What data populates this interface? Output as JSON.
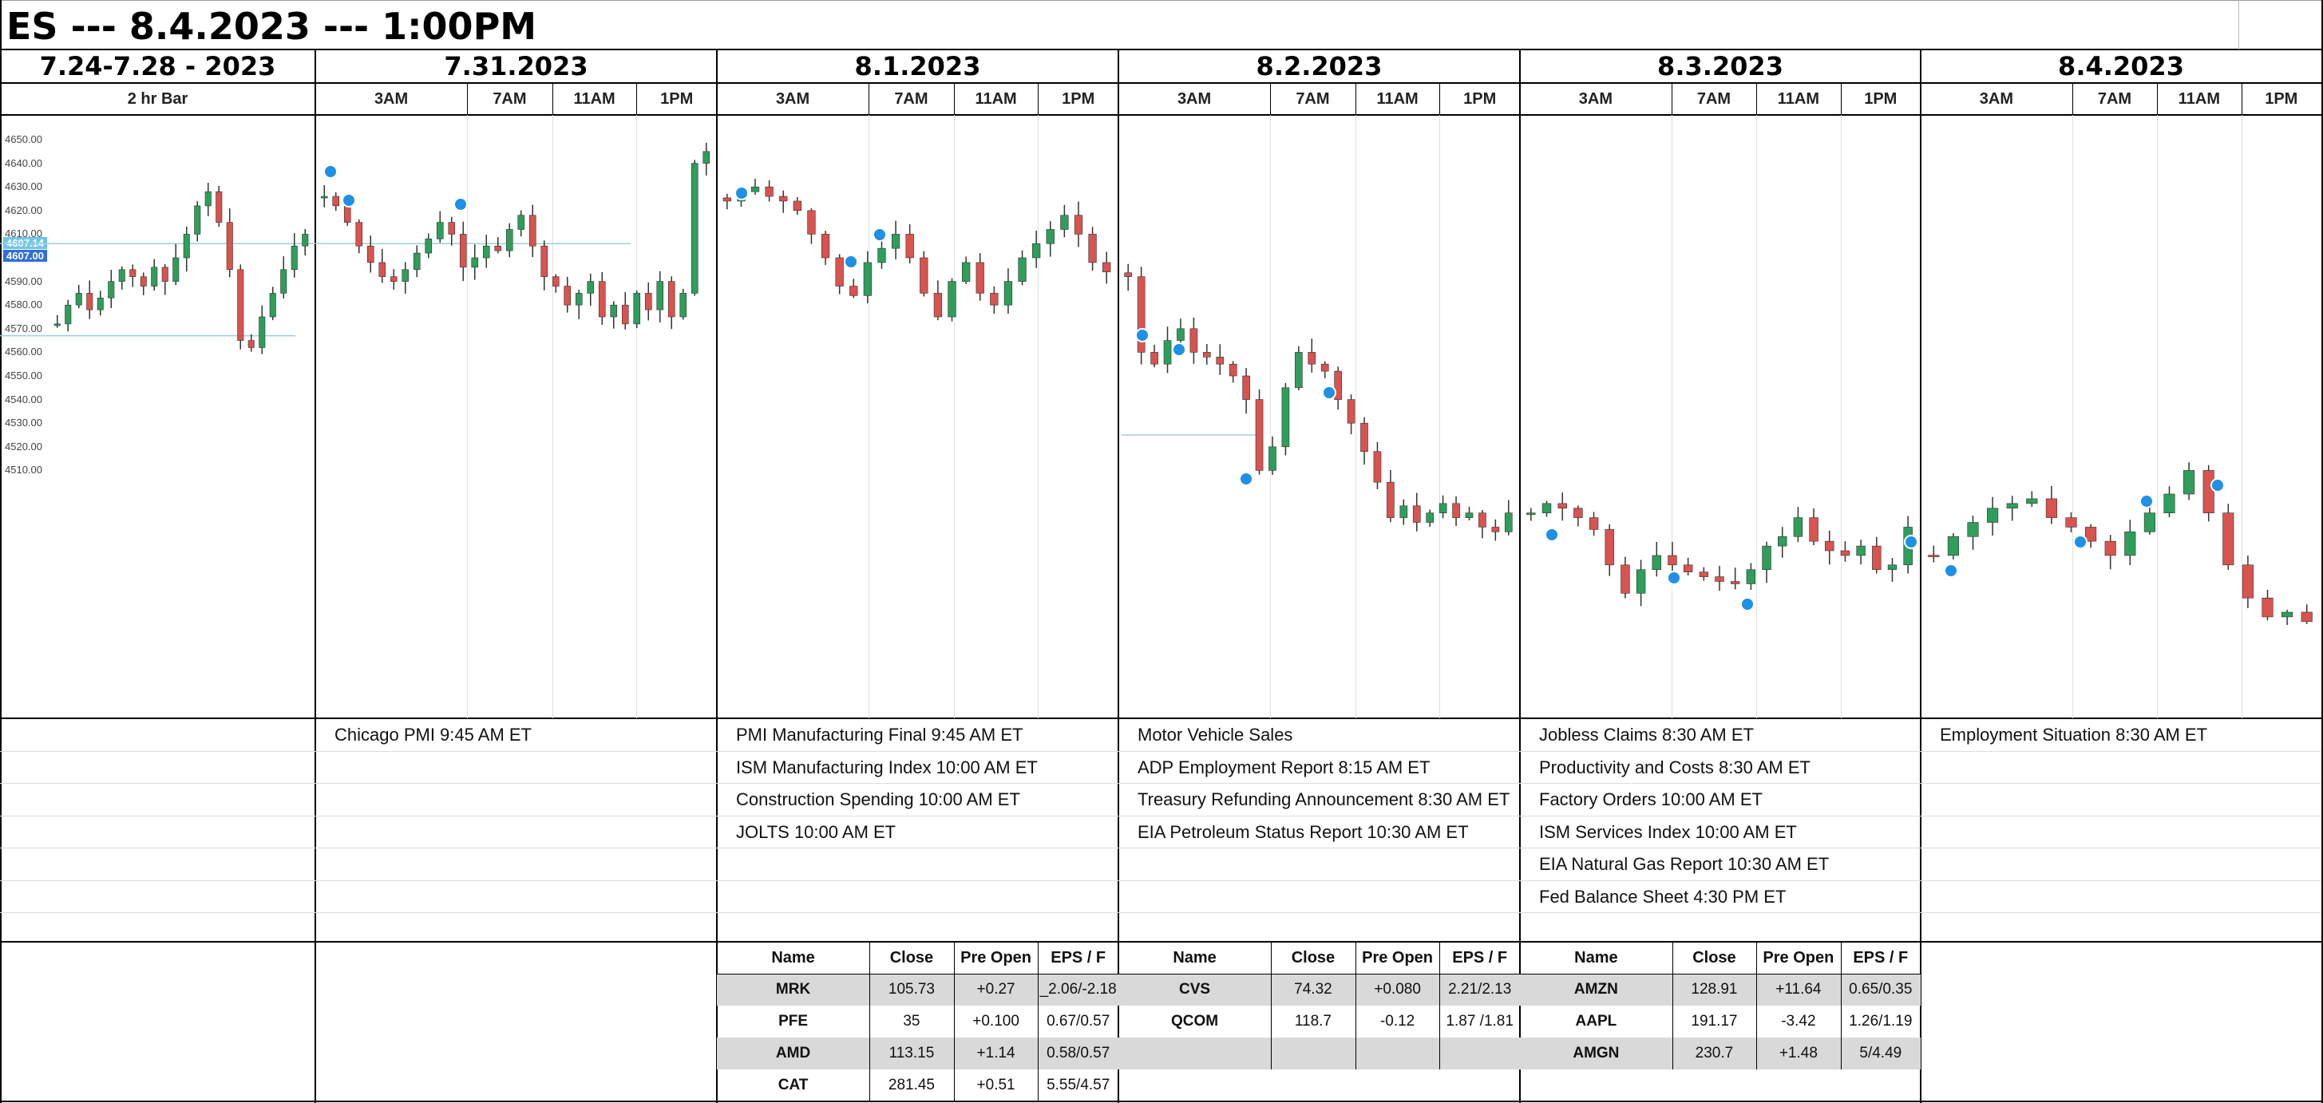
{
  "header": {
    "title": "ES --- 8.4.2023 --- 1:00PM"
  },
  "columns": [
    {
      "date": "7.24-7.28 - 2023",
      "sublabel": "2 hr Bar",
      "times": []
    },
    {
      "date": "7.31.2023",
      "times": [
        "3AM",
        "7AM",
        "11AM",
        "1PM"
      ]
    },
    {
      "date": "8.1.2023",
      "times": [
        "3AM",
        "7AM",
        "11AM",
        "1PM"
      ]
    },
    {
      "date": "8.2.2023",
      "times": [
        "3AM",
        "7AM",
        "11AM",
        "1PM"
      ]
    },
    {
      "date": "8.3.2023",
      "times": [
        "3AM",
        "7AM",
        "11AM",
        "1PM"
      ]
    },
    {
      "date": "8.4.2023",
      "times": [
        "3AM",
        "7AM",
        "11AM",
        "1PM"
      ]
    }
  ],
  "price_axis": {
    "ticks": [
      "4650.00",
      "4640.00",
      "4630.00",
      "4620.00",
      "4610.00",
      "4600.00",
      "4590.00",
      "4580.00",
      "4570.00",
      "4560.00",
      "4550.00",
      "4540.00",
      "4530.00",
      "4520.00",
      "4510.00"
    ],
    "badges": [
      "4607.14",
      "4607.00"
    ]
  },
  "events": [
    [],
    [
      "Chicago PMI 9:45 AM ET"
    ],
    [
      "PMI Manufacturing Final 9:45 AM ET",
      "ISM Manufacturing Index 10:00 AM ET",
      "Construction Spending 10:00 AM ET",
      "JOLTS 10:00 AM ET"
    ],
    [
      "Motor Vehicle Sales",
      "ADP Employment Report 8:15 AM ET",
      "Treasury Refunding Announcement 8:30 AM ET",
      "EIA Petroleum Status Report 10:30 AM ET"
    ],
    [
      "Jobless Claims 8:30 AM ET",
      "Productivity and Costs 8:30 AM ET",
      "Factory Orders 10:00 AM ET",
      "ISM Services Index 10:00 AM ET",
      "EIA Natural Gas Report 10:30 AM ET",
      "Fed Balance Sheet 4:30 PM ET"
    ],
    [
      "Employment Situation 8:30 AM ET"
    ]
  ],
  "earnings_header": [
    "Name",
    "Close",
    "Pre Open",
    "EPS / F"
  ],
  "earnings": [
    [],
    [],
    [
      [
        "MRK",
        "105.73",
        "+0.27",
        "_2.06/-2.18"
      ],
      [
        "PFE",
        "35",
        "+0.100",
        "0.67/0.57"
      ],
      [
        "AMD",
        "113.15",
        "+1.14",
        "0.58/0.57"
      ],
      [
        "CAT",
        "281.45",
        "+0.51",
        "5.55/4.57"
      ]
    ],
    [
      [
        "CVS",
        "74.32",
        "+0.080",
        "2.21/2.13"
      ],
      [
        "QCOM",
        "118.7",
        "-0.12",
        "1.87 /1.81"
      ],
      [
        "",
        "",
        "",
        ""
      ]
    ],
    [
      [
        "AMZN",
        "128.91",
        "+11.64",
        "0.65/0.35"
      ],
      [
        "AAPL",
        "191.17",
        "-3.42",
        "1.26/1.19"
      ],
      [
        "AMGN",
        "230.7",
        "+1.48",
        "5/4.49"
      ]
    ],
    []
  ],
  "chart_data": {
    "type": "candlestick",
    "title": "",
    "ylabel": "",
    "colors": {
      "up": "#2e9e5b",
      "down": "#d9534f"
    },
    "segments": [
      {
        "label": "7.24-7.28 - 2023",
        "closes": [
          4572,
          4580,
          4585,
          4578,
          4583,
          4590,
          4595,
          4592,
          4588,
          4596,
          4590,
          4600,
          4610,
          4622,
          4628,
          4615,
          4595,
          4565,
          4562,
          4575,
          4585,
          4595,
          4605,
          4610
        ]
      },
      {
        "label": "7.31.2023",
        "closes": [
          4626,
          4622,
          4615,
          4605,
          4598,
          4592,
          4590,
          4595,
          4602,
          4608,
          4615,
          4610,
          4596,
          4600,
          4605,
          4603,
          4612,
          4618,
          4605,
          4592,
          4588,
          4580,
          4585,
          4590,
          4575,
          4580,
          4572,
          4585,
          4578,
          4590,
          4575,
          4585,
          4640,
          4645
        ]
      },
      {
        "label": "8.1.2023",
        "closes": [
          4624,
          4628,
          4630,
          4626,
          4624,
          4620,
          4610,
          4600,
          4588,
          4584,
          4598,
          4604,
          4610,
          4600,
          4585,
          4575,
          4590,
          4598,
          4585,
          4580,
          4590,
          4600,
          4606,
          4612,
          4618,
          4610,
          4598,
          4594
        ]
      },
      {
        "label": "8.2.2023",
        "closes": [
          4592,
          4560,
          4555,
          4565,
          4570,
          4560,
          4558,
          4555,
          4550,
          4540,
          4510,
          4520,
          4545,
          4560,
          4555,
          4552,
          4540,
          4530,
          4518,
          4505,
          4490,
          4495,
          4488,
          4492,
          4496,
          4490,
          4492,
          4486,
          4484,
          4492
        ]
      },
      {
        "label": "8.3.2023",
        "closes": [
          4492,
          4496,
          4494,
          4490,
          4485,
          4470,
          4458,
          4468,
          4474,
          4470,
          4467,
          4465,
          4463,
          4462,
          4468,
          4478,
          4482,
          4490,
          4480,
          4476,
          4474,
          4478,
          4468,
          4470,
          4486
        ]
      },
      {
        "label": "8.4.2023",
        "closes": [
          4474,
          4482,
          4488,
          4494,
          4496,
          4498,
          4490,
          4486,
          4480,
          4474,
          4484,
          4492,
          4500,
          4510,
          4492,
          4470,
          4456,
          4448,
          4450,
          4446
        ]
      }
    ]
  }
}
